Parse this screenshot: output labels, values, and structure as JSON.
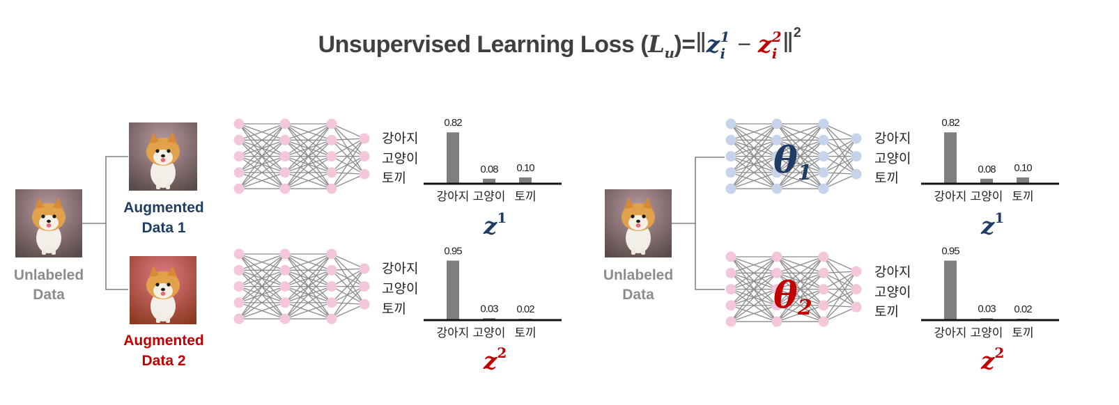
{
  "title": {
    "prefix": "Unsupervised Learning Loss (",
    "L": "L",
    "L_sub": "u",
    "close": ")=",
    "norm_open": "‖",
    "z1": "z",
    "z1_sup": "1",
    "z1_sub": "i",
    "minus": "−",
    "z2": "z",
    "z2_sup": "2",
    "z2_sub": "i",
    "norm_close": "‖",
    "power": "2"
  },
  "colors": {
    "blue": "#1f3c63",
    "red": "#c00000",
    "gray_text": "#8c8c8c",
    "bar": "#7f7f7f",
    "node_pink": "#f4c6dc",
    "node_blue": "#c5d4ea",
    "line": "#808080"
  },
  "icons": {
    "photo": "pomeranian-photo",
    "network": "neural-network-icon"
  },
  "left": {
    "source_label_line1": "Unlabeled",
    "source_label_line2": "Data",
    "aug1_line1": "Augmented",
    "aug1_line2": "Data 1",
    "aug2_line1": "Augmented",
    "aug2_line2": "Data 2"
  },
  "right": {
    "source_label_line1": "Unlabeled",
    "source_label_line2": "Data",
    "theta1": "θ",
    "theta1_sub": "1",
    "theta2": "θ",
    "theta2_sub": "2"
  },
  "output_classes": [
    "강아지",
    "고양이",
    "토끼"
  ],
  "chart_data": [
    {
      "type": "bar",
      "name": "z1-left",
      "categories": [
        "강아지",
        "고양이",
        "토끼"
      ],
      "values": [
        0.82,
        0.08,
        0.1
      ],
      "labels": [
        "0.82",
        "0.08",
        "0.10"
      ],
      "caption": "z",
      "caption_sup": "1",
      "ylim": [
        0,
        1
      ]
    },
    {
      "type": "bar",
      "name": "z2-left",
      "categories": [
        "강아지",
        "고양이",
        "토끼"
      ],
      "values": [
        0.95,
        0.03,
        0.02
      ],
      "labels": [
        "0.95",
        "0.03",
        "0.02"
      ],
      "caption": "z",
      "caption_sup": "2",
      "ylim": [
        0,
        1
      ]
    },
    {
      "type": "bar",
      "name": "z1-right",
      "categories": [
        "강아지",
        "고양이",
        "토끼"
      ],
      "values": [
        0.82,
        0.08,
        0.1
      ],
      "labels": [
        "0.82",
        "0.08",
        "0.10"
      ],
      "caption": "z",
      "caption_sup": "1",
      "ylim": [
        0,
        1
      ]
    },
    {
      "type": "bar",
      "name": "z2-right",
      "categories": [
        "강아지",
        "고양이",
        "토끼"
      ],
      "values": [
        0.95,
        0.03,
        0.02
      ],
      "labels": [
        "0.95",
        "0.03",
        "0.02"
      ],
      "caption": "z",
      "caption_sup": "2",
      "ylim": [
        0,
        1
      ]
    }
  ]
}
